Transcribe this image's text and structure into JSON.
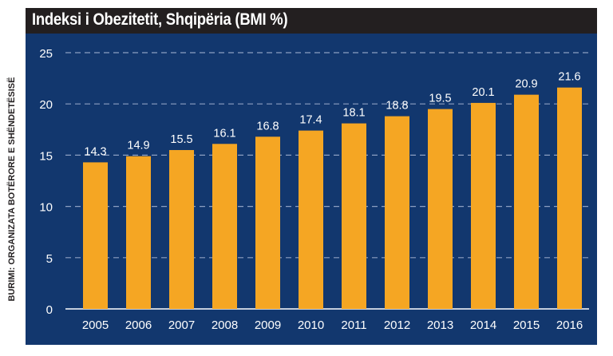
{
  "colors": {
    "panel": "#12376e",
    "bar": "#f5a623",
    "title_bg": "#231f20",
    "text_light": "#ffffff",
    "grid": "#8c9fc1"
  },
  "source": "BURIMI: ORGANIZATA BOTËRORE E SHËNDETËSISË",
  "chart_data": {
    "type": "bar",
    "title": "Indeksi i Obezitetit, Shqipëria  (BMI %)",
    "xlabel": "",
    "ylabel": "",
    "categories": [
      "2005",
      "2006",
      "2007",
      "2008",
      "2009",
      "2010",
      "2011",
      "2012",
      "2013",
      "2014",
      "2015",
      "2016"
    ],
    "values": [
      14.3,
      14.9,
      15.5,
      16.1,
      16.8,
      17.4,
      18.1,
      18.8,
      19.5,
      20.1,
      20.9,
      21.6
    ],
    "value_labels": [
      "14.3",
      "14.9",
      "15.5",
      "16.1",
      "16.8",
      "17.4",
      "18.1",
      "18.8",
      "19.5",
      "20.1",
      "20.9",
      "21.6"
    ],
    "yticks": [
      "0",
      "5",
      "10",
      "15",
      "20",
      "25"
    ],
    "ytick_values": [
      0,
      5,
      10,
      15,
      20,
      25
    ],
    "ylim": [
      0,
      25
    ],
    "grid": true
  }
}
